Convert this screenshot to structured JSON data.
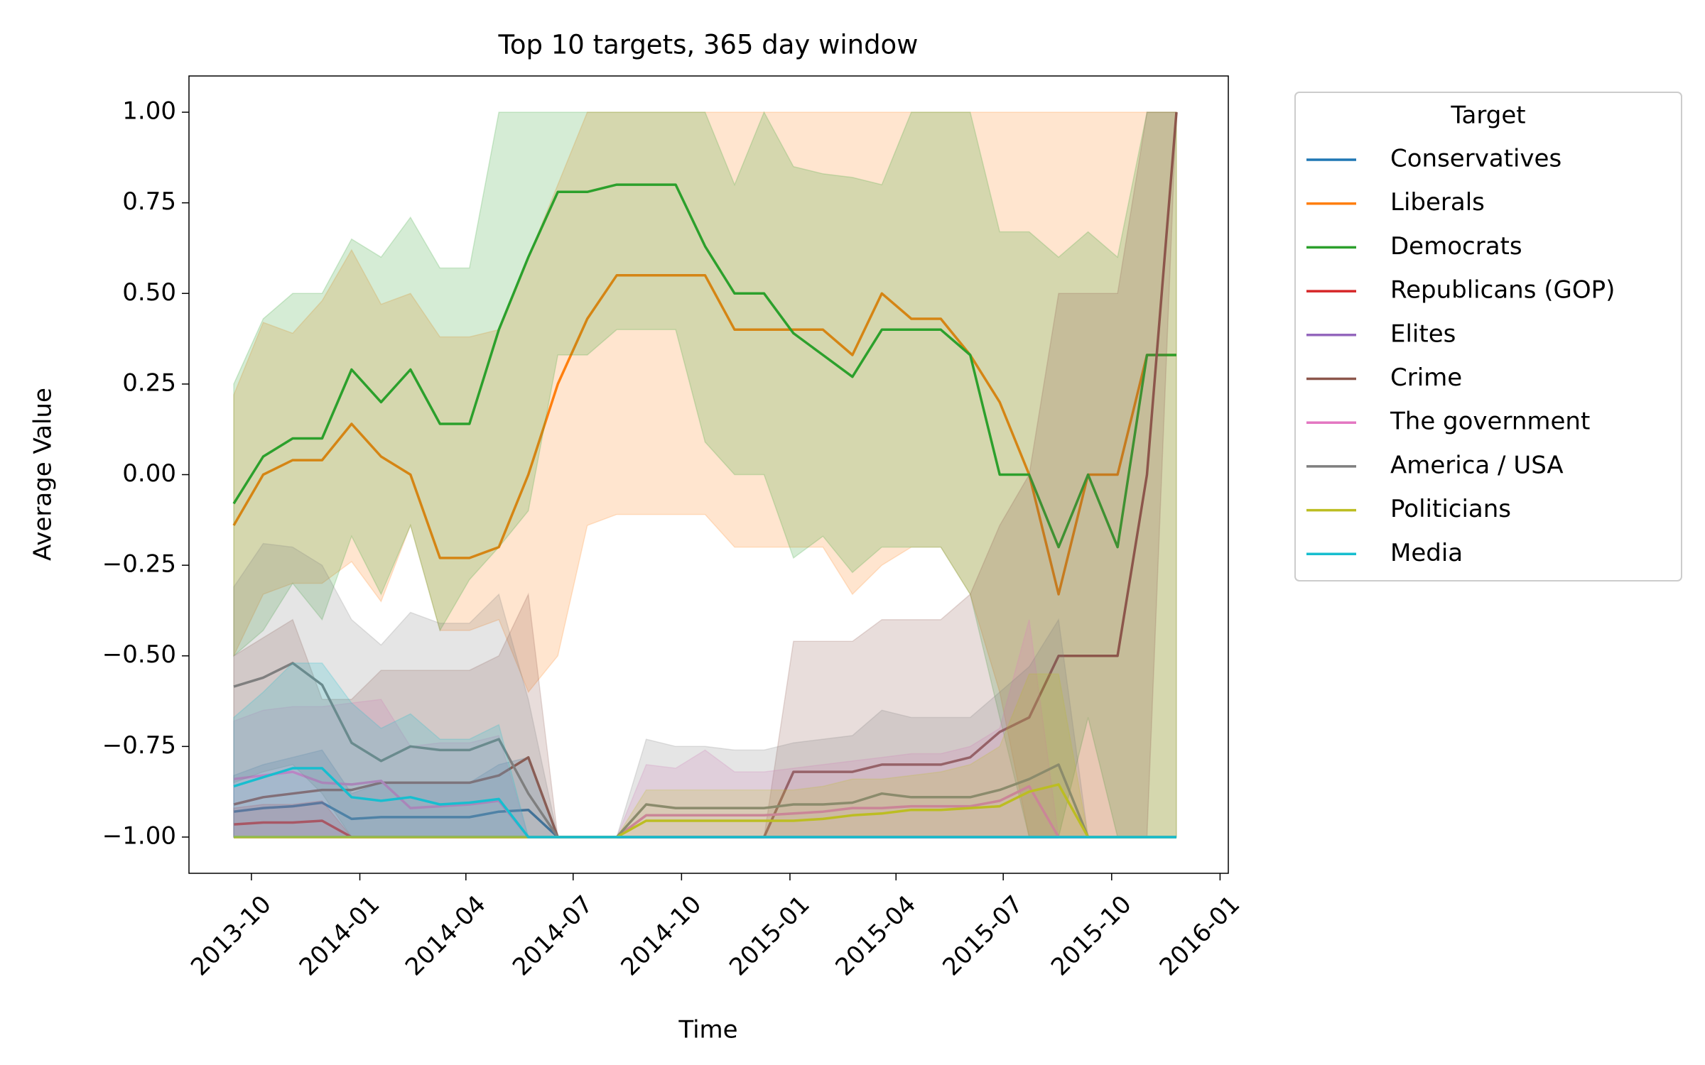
{
  "chart_data": {
    "type": "line",
    "title": "Top 10 targets, 365 day window",
    "xlabel": "Time",
    "ylabel": "Average Value",
    "legend_title": "Target",
    "legend_position": "outside-right",
    "x": [
      "2013-09-16",
      "2013-10-11",
      "2013-11-05",
      "2013-11-30",
      "2013-12-25",
      "2014-01-19",
      "2014-02-13",
      "2014-03-10",
      "2014-04-04",
      "2014-04-29",
      "2014-05-24",
      "2014-06-18",
      "2014-07-13",
      "2014-08-07",
      "2014-09-01",
      "2014-09-26",
      "2014-10-21",
      "2014-11-15",
      "2014-12-10",
      "2015-01-04",
      "2015-01-29",
      "2015-02-23",
      "2015-03-20",
      "2015-04-14",
      "2015-05-09",
      "2015-06-03",
      "2015-06-28",
      "2015-07-23",
      "2015-08-17",
      "2015-09-11",
      "2015-10-06",
      "2015-10-31",
      "2015-11-25"
    ],
    "xlim": [
      "2013-08-09",
      "2016-01-08"
    ],
    "xticks": [
      {
        "value": "2013-10-01",
        "label": "2013-10"
      },
      {
        "value": "2014-01-01",
        "label": "2014-01"
      },
      {
        "value": "2014-04-01",
        "label": "2014-04"
      },
      {
        "value": "2014-07-01",
        "label": "2014-07"
      },
      {
        "value": "2014-10-01",
        "label": "2014-10"
      },
      {
        "value": "2015-01-01",
        "label": "2015-01"
      },
      {
        "value": "2015-04-01",
        "label": "2015-04"
      },
      {
        "value": "2015-07-01",
        "label": "2015-07"
      },
      {
        "value": "2015-10-01",
        "label": "2015-10"
      },
      {
        "value": "2016-01-01",
        "label": "2016-01"
      }
    ],
    "ylim": [
      -1.1,
      1.1
    ],
    "yticks": [
      {
        "value": -1,
        "label": "−1.00"
      },
      {
        "value": -0.75,
        "label": "−0.75"
      },
      {
        "value": -0.5,
        "label": "−0.50"
      },
      {
        "value": -0.25,
        "label": "−0.25"
      },
      {
        "value": 0,
        "label": "0.00"
      },
      {
        "value": 0.25,
        "label": "0.25"
      },
      {
        "value": 0.5,
        "label": "0.50"
      },
      {
        "value": 0.75,
        "label": "0.75"
      },
      {
        "value": 1,
        "label": "1.00"
      }
    ],
    "band_opacity": 0.2,
    "series": [
      {
        "name": "Conservatives",
        "color": "#1f77b4",
        "values": [
          -0.93,
          -0.92,
          -0.915,
          -0.905,
          -0.95,
          -0.945,
          -0.945,
          -0.945,
          -0.945,
          -0.93,
          -0.925,
          -1,
          -1,
          -1,
          -1,
          -1,
          -1,
          -1,
          -1,
          -1,
          -1,
          -1,
          -1,
          -1,
          -1,
          -1,
          -1,
          -1,
          -1,
          -1,
          -1,
          -1,
          -1
        ],
        "lower": [
          -1,
          -1,
          -1,
          -1,
          -1,
          -1,
          -1,
          -1,
          -1,
          -1,
          -1,
          -1,
          -1,
          -1,
          -1,
          -1,
          -1,
          -1,
          -1,
          -1,
          -1,
          -1,
          -1,
          -1,
          -1,
          -1,
          -1,
          -1,
          -1,
          -1,
          -1,
          -1,
          -1
        ],
        "upper": [
          -0.83,
          -0.8,
          -0.78,
          -0.76,
          -0.88,
          -0.85,
          -0.85,
          -0.85,
          -0.85,
          -0.8,
          -0.78,
          -1,
          -1,
          -1,
          -1,
          -1,
          -1,
          -1,
          -1,
          -1,
          -1,
          -1,
          -1,
          -1,
          -1,
          -1,
          -1,
          -1,
          -1,
          -1,
          -1,
          -1,
          -1
        ]
      },
      {
        "name": "Liberals",
        "color": "#ff7f0e",
        "values": [
          -0.14,
          0,
          0.04,
          0.04,
          0.14,
          0.05,
          0,
          -0.23,
          -0.23,
          -0.2,
          0,
          0.25,
          0.43,
          0.55,
          0.55,
          0.55,
          0.55,
          0.4,
          0.4,
          0.4,
          0.4,
          0.33,
          0.5,
          0.43,
          0.43,
          0.33,
          0.2,
          0,
          -0.33,
          0,
          0,
          0.33,
          0.33
        ],
        "lower": [
          -0.5,
          -0.33,
          -0.3,
          -0.3,
          -0.24,
          -0.35,
          -0.14,
          -0.43,
          -0.43,
          -0.4,
          -0.6,
          -0.5,
          -0.14,
          -0.11,
          -0.11,
          -0.11,
          -0.11,
          -0.2,
          -0.2,
          -0.2,
          -0.2,
          -0.33,
          -0.25,
          -0.2,
          -0.2,
          -0.33,
          -0.6,
          -1,
          -1,
          -1,
          -1,
          -1,
          -1
        ],
        "upper": [
          0.22,
          0.42,
          0.39,
          0.48,
          0.62,
          0.47,
          0.5,
          0.38,
          0.38,
          0.4,
          0.6,
          0.8,
          1,
          1,
          1,
          1,
          1,
          1,
          1,
          1,
          1,
          1,
          1,
          1,
          1,
          1,
          1,
          1,
          1,
          1,
          1,
          1,
          1
        ]
      },
      {
        "name": "Democrats",
        "color": "#2ca02c",
        "values": [
          -0.08,
          0.05,
          0.1,
          0.1,
          0.29,
          0.2,
          0.29,
          0.14,
          0.14,
          0.4,
          0.6,
          0.78,
          0.78,
          0.8,
          0.8,
          0.8,
          0.63,
          0.5,
          0.5,
          0.39,
          0.33,
          0.27,
          0.4,
          0.4,
          0.4,
          0.33,
          0,
          0,
          -0.2,
          0,
          -0.2,
          0.33,
          0.33
        ],
        "lower": [
          -0.5,
          -0.43,
          -0.3,
          -0.4,
          -0.17,
          -0.33,
          -0.14,
          -0.43,
          -0.29,
          -0.2,
          -0.1,
          0.33,
          0.33,
          0.4,
          0.4,
          0.4,
          0.09,
          0,
          0,
          -0.23,
          -0.17,
          -0.27,
          -0.2,
          -0.2,
          -0.2,
          -0.33,
          -0.67,
          -1,
          -1,
          -0.67,
          -1,
          -1,
          -1
        ],
        "upper": [
          0.25,
          0.43,
          0.5,
          0.5,
          0.65,
          0.6,
          0.71,
          0.57,
          0.57,
          1,
          1,
          1,
          1,
          1,
          1,
          1,
          1,
          0.8,
          1,
          0.85,
          0.83,
          0.82,
          0.8,
          1,
          1,
          1,
          0.67,
          0.67,
          0.6,
          0.67,
          0.6,
          1,
          1
        ]
      },
      {
        "name": "Republicans (GOP)",
        "color": "#d62728",
        "values": [
          -0.965,
          -0.96,
          -0.96,
          -0.955,
          -1,
          -1,
          -1,
          -1,
          -1,
          -1,
          -1,
          -1,
          -1,
          -1,
          -1,
          -1,
          -1,
          -1,
          -1,
          -1,
          -1,
          -1,
          -1,
          -1,
          -1,
          -1,
          -1,
          -1,
          -1,
          -1,
          -1,
          -1,
          -1
        ],
        "lower": [
          -1,
          -1,
          -1,
          -1,
          -1,
          -1,
          -1,
          -1,
          -1,
          -1,
          -1,
          -1,
          -1,
          -1,
          -1,
          -1,
          -1,
          -1,
          -1,
          -1,
          -1,
          -1,
          -1,
          -1,
          -1,
          -1,
          -1,
          -1,
          -1,
          -1,
          -1,
          -1,
          -1
        ],
        "upper": [
          -0.92,
          -0.91,
          -0.91,
          -0.9,
          -1,
          -1,
          -1,
          -1,
          -1,
          -1,
          -1,
          -1,
          -1,
          -1,
          -1,
          -1,
          -1,
          -1,
          -1,
          -1,
          -1,
          -1,
          -1,
          -1,
          -1,
          -1,
          -1,
          -1,
          -1,
          -1,
          -1,
          -1,
          -1
        ]
      },
      {
        "name": "Elites",
        "color": "#9467bd",
        "values": [
          -1,
          -1,
          -1,
          -1,
          -1,
          -1,
          -1,
          -1,
          -1,
          -1,
          -1,
          -1,
          -1,
          -1,
          -1,
          -1,
          -1,
          -1,
          -1,
          -1,
          -1,
          -1,
          -1,
          -1,
          -1,
          -1,
          -1,
          -1,
          -1,
          -1,
          -1,
          -1,
          -1
        ],
        "lower": [
          -1,
          -1,
          -1,
          -1,
          -1,
          -1,
          -1,
          -1,
          -1,
          -1,
          -1,
          -1,
          -1,
          -1,
          -1,
          -1,
          -1,
          -1,
          -1,
          -1,
          -1,
          -1,
          -1,
          -1,
          -1,
          -1,
          -1,
          -1,
          -1,
          -1,
          -1,
          -1,
          -1
        ],
        "upper": [
          -1,
          -1,
          -1,
          -1,
          -1,
          -1,
          -1,
          -1,
          -1,
          -1,
          -1,
          -1,
          -1,
          -1,
          -1,
          -1,
          -1,
          -1,
          -1,
          -1,
          -1,
          -1,
          -1,
          -1,
          -1,
          -1,
          -1,
          -1,
          -1,
          -1,
          -1,
          -1,
          -1
        ]
      },
      {
        "name": "Crime",
        "color": "#8c564b",
        "values": [
          -0.91,
          -0.89,
          -0.88,
          -0.87,
          -0.87,
          -0.85,
          -0.85,
          -0.85,
          -0.85,
          -0.83,
          -0.78,
          -1,
          -1,
          -1,
          -1,
          -1,
          -1,
          -1,
          -1,
          -0.82,
          -0.82,
          -0.82,
          -0.8,
          -0.8,
          -0.8,
          -0.78,
          -0.71,
          -0.67,
          -0.5,
          -0.5,
          -0.5,
          0,
          1
        ],
        "lower": [
          -1,
          -1,
          -1,
          -1,
          -1,
          -1,
          -1,
          -1,
          -1,
          -1,
          -1,
          -1,
          -1,
          -1,
          -1,
          -1,
          -1,
          -1,
          -1,
          -1,
          -1,
          -1,
          -1,
          -1,
          -1,
          -1,
          -1,
          -1,
          -1,
          -1,
          -1,
          -1,
          1
        ],
        "upper": [
          -0.5,
          -0.45,
          -0.4,
          -0.62,
          -0.62,
          -0.54,
          -0.54,
          -0.54,
          -0.54,
          -0.5,
          -0.33,
          -1,
          -1,
          -1,
          -1,
          -1,
          -1,
          -1,
          -1,
          -0.46,
          -0.46,
          -0.46,
          -0.4,
          -0.4,
          -0.4,
          -0.33,
          -0.14,
          0,
          0.5,
          0.5,
          0.5,
          1,
          1
        ]
      },
      {
        "name": "The government",
        "color": "#e377c2",
        "values": [
          -0.84,
          -0.83,
          -0.82,
          -0.85,
          -0.855,
          -0.845,
          -0.92,
          -0.915,
          -0.91,
          -0.9,
          -1,
          -1,
          -1,
          -1,
          -0.94,
          -0.94,
          -0.94,
          -0.94,
          -0.94,
          -0.935,
          -0.93,
          -0.92,
          -0.92,
          -0.915,
          -0.915,
          -0.915,
          -0.9,
          -0.86,
          -1,
          -1,
          -1,
          -1,
          -1
        ],
        "lower": [
          -1,
          -1,
          -1,
          -1,
          -1,
          -1,
          -1,
          -1,
          -1,
          -1,
          -1,
          -1,
          -1,
          -1,
          -1,
          -1,
          -1,
          -1,
          -1,
          -1,
          -1,
          -1,
          -1,
          -1,
          -1,
          -1,
          -1,
          -1,
          -1,
          -1,
          -1,
          -1,
          -1
        ],
        "upper": [
          -0.68,
          -0.65,
          -0.64,
          -0.64,
          -0.63,
          -0.62,
          -0.75,
          -0.74,
          -0.74,
          -0.72,
          -1,
          -1,
          -1,
          -1,
          -0.8,
          -0.81,
          -0.76,
          -0.82,
          -0.82,
          -0.81,
          -0.8,
          -0.79,
          -0.78,
          -0.77,
          -0.77,
          -0.75,
          -0.7,
          -0.4,
          -1,
          -1,
          -1,
          -1,
          -1
        ]
      },
      {
        "name": "America / USA",
        "color": "#7f7f7f",
        "values": [
          -0.585,
          -0.56,
          -0.52,
          -0.58,
          -0.74,
          -0.79,
          -0.75,
          -0.76,
          -0.76,
          -0.73,
          -0.88,
          -1,
          -1,
          -1,
          -0.91,
          -0.92,
          -0.92,
          -0.92,
          -0.92,
          -0.91,
          -0.91,
          -0.905,
          -0.88,
          -0.89,
          -0.89,
          -0.89,
          -0.87,
          -0.84,
          -0.8,
          -1,
          -1,
          -1,
          -1
        ],
        "lower": [
          -0.85,
          -0.82,
          -0.8,
          -0.88,
          -1,
          -1,
          -1,
          -1,
          -1,
          -1,
          -1,
          -1,
          -1,
          -1,
          -1,
          -1,
          -1,
          -1,
          -1,
          -1,
          -1,
          -1,
          -1,
          -1,
          -1,
          -1,
          -1,
          -1,
          -1,
          -1,
          -1,
          -1,
          -1
        ],
        "upper": [
          -0.31,
          -0.19,
          -0.2,
          -0.25,
          -0.4,
          -0.47,
          -0.38,
          -0.41,
          -0.41,
          -0.33,
          -0.62,
          -1,
          -1,
          -1,
          -0.73,
          -0.75,
          -0.75,
          -0.76,
          -0.76,
          -0.74,
          -0.73,
          -0.72,
          -0.65,
          -0.67,
          -0.67,
          -0.67,
          -0.6,
          -0.53,
          -0.4,
          -1,
          -1,
          -1,
          -1
        ]
      },
      {
        "name": "Politicians",
        "color": "#bcbd22",
        "values": [
          -1,
          -1,
          -1,
          -1,
          -1,
          -1,
          -1,
          -1,
          -1,
          -1,
          -1,
          -1,
          -1,
          -1,
          -0.955,
          -0.955,
          -0.955,
          -0.955,
          -0.955,
          -0.955,
          -0.95,
          -0.94,
          -0.935,
          -0.925,
          -0.925,
          -0.92,
          -0.915,
          -0.875,
          -0.855,
          -1,
          -1,
          -1,
          -1
        ],
        "lower": [
          -1,
          -1,
          -1,
          -1,
          -1,
          -1,
          -1,
          -1,
          -1,
          -1,
          -1,
          -1,
          -1,
          -1,
          -1,
          -1,
          -1,
          -1,
          -1,
          -1,
          -1,
          -1,
          -1,
          -1,
          -1,
          -1,
          -1,
          -1,
          -1,
          -1,
          -1,
          -1,
          -1
        ],
        "upper": [
          -1,
          -1,
          -1,
          -1,
          -1,
          -1,
          -1,
          -1,
          -1,
          -1,
          -1,
          -1,
          -1,
          -1,
          -0.87,
          -0.87,
          -0.87,
          -0.87,
          -0.87,
          -0.87,
          -0.86,
          -0.84,
          -0.84,
          -0.83,
          -0.82,
          -0.8,
          -0.75,
          -0.55,
          -0.55,
          -1,
          -1,
          -1,
          -1
        ]
      },
      {
        "name": "Media",
        "color": "#17becf",
        "values": [
          -0.86,
          -0.835,
          -0.81,
          -0.81,
          -0.89,
          -0.9,
          -0.89,
          -0.91,
          -0.905,
          -0.895,
          -1,
          -1,
          -1,
          -1,
          -1,
          -1,
          -1,
          -1,
          -1,
          -1,
          -1,
          -1,
          -1,
          -1,
          -1,
          -1,
          -1,
          -1,
          -1,
          -1,
          -1,
          -1,
          -1
        ],
        "lower": [
          -1,
          -1,
          -1,
          -1,
          -1,
          -1,
          -1,
          -1,
          -1,
          -1,
          -1,
          -1,
          -1,
          -1,
          -1,
          -1,
          -1,
          -1,
          -1,
          -1,
          -1,
          -1,
          -1,
          -1,
          -1,
          -1,
          -1,
          -1,
          -1,
          -1,
          -1,
          -1,
          -1
        ],
        "upper": [
          -0.67,
          -0.6,
          -0.52,
          -0.52,
          -0.63,
          -0.7,
          -0.66,
          -0.73,
          -0.73,
          -0.69,
          -1,
          -1,
          -1,
          -1,
          -1,
          -1,
          -1,
          -1,
          -1,
          -1,
          -1,
          -1,
          -1,
          -1,
          -1,
          -1,
          -1,
          -1,
          -1,
          -1,
          -1,
          -1,
          -1
        ]
      }
    ]
  }
}
